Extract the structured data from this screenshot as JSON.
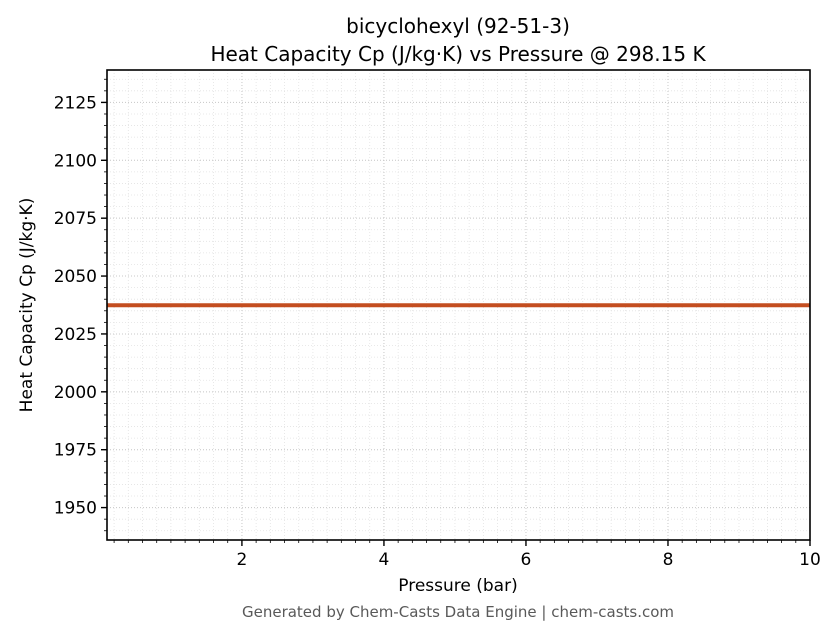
{
  "chart_data": {
    "type": "line",
    "title_lines": [
      "bicyclohexyl (92-51-3)",
      "Heat Capacity Cp (J/kg·K) vs Pressure @ 298.15 K"
    ],
    "xlabel": "Pressure (bar)",
    "ylabel": "Heat Capacity Cp (J/kg·K)",
    "xlim": [
      0.1,
      10
    ],
    "ylim": [
      1936,
      2139
    ],
    "xticks": [
      2,
      4,
      6,
      8,
      10
    ],
    "yticks": [
      1950,
      1975,
      2000,
      2025,
      2050,
      2075,
      2100,
      2125
    ],
    "x_minor_step": 0.2,
    "y_minor_step": 5,
    "grid": "major+minor dotted",
    "legend": "none",
    "line_color": "#c44e20",
    "line_width": 4,
    "series": [
      {
        "name": "Heat Capacity Cp",
        "x": [
          0.1,
          1,
          2,
          3,
          4,
          5,
          6,
          7,
          8,
          9,
          10
        ],
        "y": [
          2037.4,
          2037.4,
          2037.4,
          2037.4,
          2037.4,
          2037.4,
          2037.4,
          2037.4,
          2037.4,
          2037.4,
          2037.4
        ]
      }
    ]
  },
  "footer": {
    "credit": "Generated by Chem-Casts Data Engine | chem-casts.com"
  }
}
